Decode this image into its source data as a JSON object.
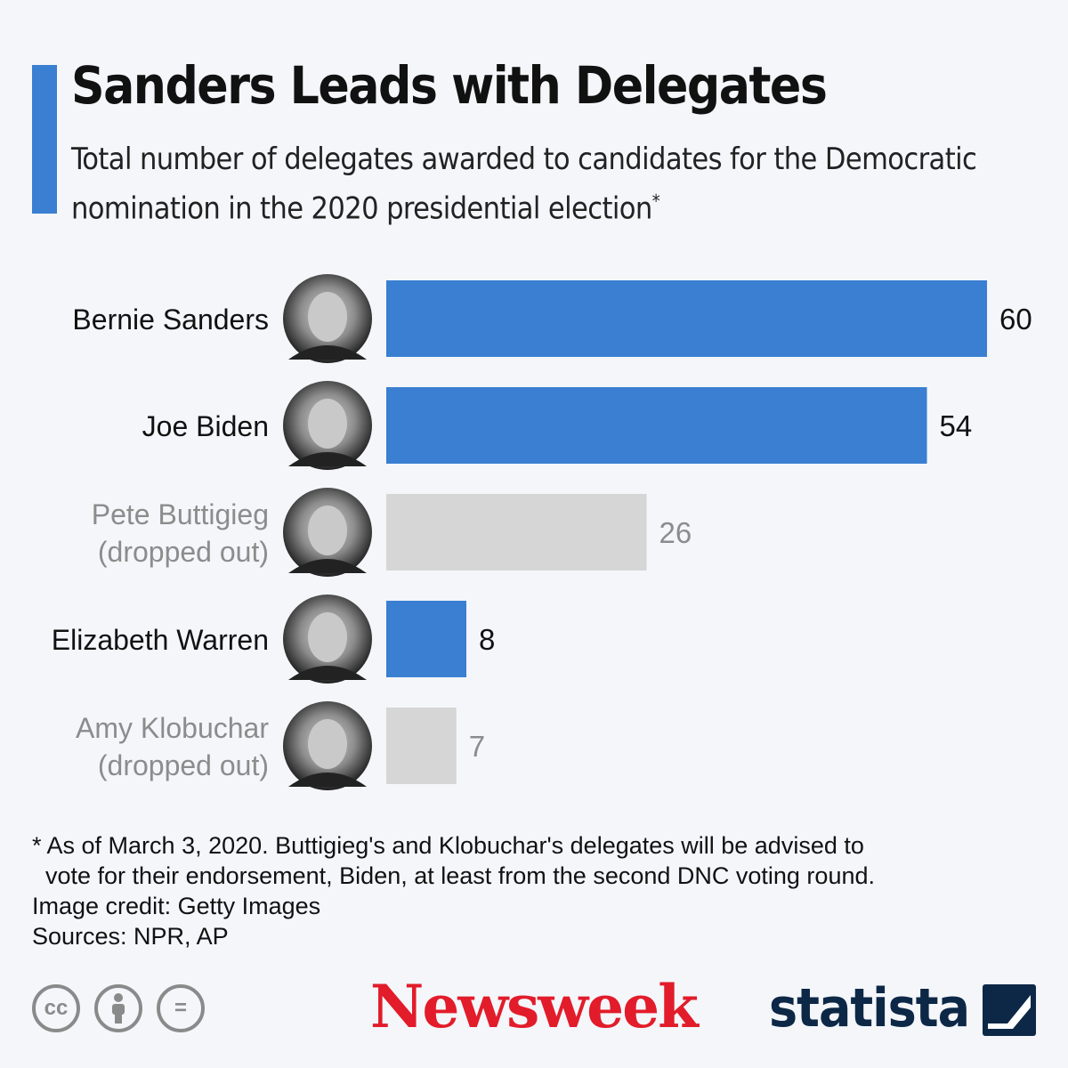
{
  "header": {
    "title": "Sanders Leads with Delegates",
    "subtitle": "Total number of delegates awarded to candidates for the Democratic nomination in the 2020 presidential election",
    "subtitle_marker": "*"
  },
  "colors": {
    "accent": "#3a7fd1",
    "active_bar": "#3a7fd1",
    "dropped_bar": "#d6d6d6",
    "active_text": "#111111",
    "dropped_text": "#8c8c8c",
    "newsweek_red": "#e21c2a",
    "statista_navy": "#0d2846"
  },
  "chart_data": {
    "type": "bar",
    "orientation": "horizontal",
    "categories": [
      [
        "Bernie Sanders"
      ],
      [
        "Joe Biden"
      ],
      [
        "Pete Buttigieg",
        "(dropped out)"
      ],
      [
        "Elizabeth Warren"
      ],
      [
        "Amy Klobuchar",
        "(dropped out)"
      ]
    ],
    "values": [
      60,
      54,
      26,
      8,
      7
    ],
    "status": [
      "active",
      "active",
      "dropped out",
      "active",
      "dropped out"
    ],
    "xlim": [
      0,
      60
    ],
    "title": "Sanders Leads with Delegates",
    "xlabel": "",
    "ylabel": "",
    "grid": false,
    "data_labels": true,
    "candidate_photos": true
  },
  "footnote": {
    "lines": [
      "* As of March 3, 2020. Buttigieg's and Klobuchar's delegates will be advised to",
      "  vote for their endorsement, Biden, at least from the second DNC voting round.",
      "Image credit: Getty Images",
      "Sources: NPR, AP"
    ]
  },
  "footer": {
    "license_icons": [
      "cc-icon",
      "attribution-icon",
      "no-derivatives-icon"
    ],
    "cc_label": "cc",
    "nd_label": "=",
    "newsweek_logo": "Newsweek",
    "statista_logo": "statista"
  }
}
